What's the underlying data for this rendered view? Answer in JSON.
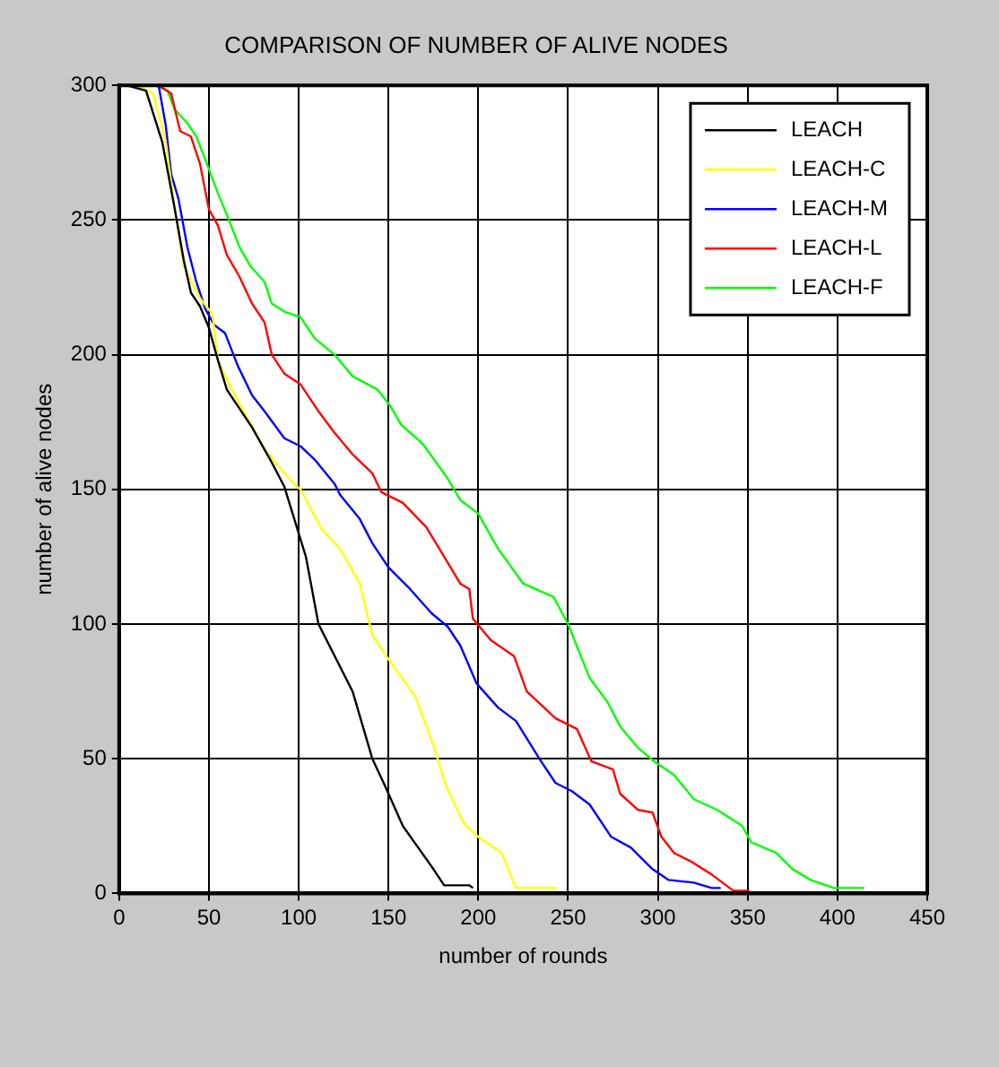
{
  "chart_data": {
    "type": "line",
    "title": "COMPARISON OF NUMBER OF ALIVE NODES",
    "xlabel": "number of rounds",
    "ylabel": "number of alive nodes",
    "xlim": [
      0,
      450
    ],
    "ylim": [
      0,
      300
    ],
    "xticks": [
      0,
      50,
      100,
      150,
      200,
      250,
      300,
      350,
      400,
      450
    ],
    "yticks": [
      0,
      50,
      100,
      150,
      200,
      250,
      300
    ],
    "grid": true,
    "legend": "top right",
    "marker": "none",
    "line_style": "solid",
    "series": [
      {
        "name": "LEACH",
        "color": "#000000",
        "x": [
          0,
          4,
          15,
          24,
          31,
          36,
          40,
          45,
          50,
          55,
          60,
          66,
          74,
          85,
          92,
          104,
          111,
          130,
          141,
          148,
          158,
          174,
          181,
          195,
          197
        ],
        "values": [
          300,
          300,
          298,
          279,
          254,
          235,
          223,
          218,
          210,
          198,
          187,
          181,
          173,
          160,
          151,
          125,
          100,
          75,
          50,
          40,
          25,
          10,
          3,
          3,
          2
        ]
      },
      {
        "name": "LEACH-C",
        "color": "#ffff00",
        "x": [
          0,
          10,
          19,
          26,
          31,
          36,
          45,
          52,
          55,
          62,
          71,
          81,
          92,
          99,
          101,
          113,
          123,
          134,
          141,
          151,
          165,
          175,
          182,
          192,
          200,
          213,
          221,
          244
        ],
        "values": [
          300,
          300,
          297,
          279,
          254,
          233,
          221,
          215,
          198,
          188,
          177,
          165,
          156,
          151,
          150,
          135,
          128,
          115,
          96,
          86,
          73,
          55,
          40,
          26,
          21,
          15,
          2,
          2
        ]
      },
      {
        "name": "LEACH-M",
        "color": "#0000ff",
        "x": [
          22,
          26,
          29,
          33,
          38,
          43,
          48,
          53,
          59,
          66,
          74,
          81,
          92,
          101,
          109,
          120,
          123,
          134,
          141,
          150,
          162,
          174,
          183,
          190,
          199,
          211,
          221,
          234,
          243,
          252,
          262,
          274,
          285,
          297,
          306,
          320,
          330,
          335
        ],
        "values": [
          300,
          285,
          267,
          258,
          240,
          227,
          217,
          211,
          208,
          196,
          185,
          179,
          169,
          166,
          161,
          152,
          148,
          139,
          130,
          121,
          113,
          104,
          99,
          92,
          78,
          69,
          64,
          50,
          41,
          38,
          33,
          21,
          17,
          9,
          5,
          4,
          2,
          2
        ]
      },
      {
        "name": "LEACH-L",
        "color": "#ff0000",
        "x": [
          22,
          29,
          34,
          40,
          45,
          50,
          55,
          60,
          67,
          74,
          81,
          85,
          92,
          101,
          111,
          120,
          130,
          141,
          146,
          158,
          171,
          181,
          190,
          195,
          197,
          207,
          220,
          227,
          235,
          243,
          255,
          263,
          275,
          279,
          289,
          297,
          302,
          309,
          318,
          330,
          342,
          351
        ],
        "values": [
          300,
          297,
          283,
          281,
          271,
          254,
          248,
          237,
          229,
          219,
          212,
          200,
          193,
          189,
          179,
          171,
          163,
          156,
          149,
          145,
          136,
          125,
          115,
          113,
          102,
          94,
          88,
          75,
          70,
          65,
          61,
          49,
          46,
          37,
          31,
          30,
          21,
          15,
          12,
          7,
          1,
          1
        ]
      },
      {
        "name": "LEACH-F",
        "color": "#00ff00",
        "x": [
          20,
          27,
          31,
          38,
          43,
          50,
          55,
          60,
          67,
          73,
          81,
          85,
          92,
          101,
          109,
          120,
          130,
          144,
          151,
          157,
          169,
          183,
          190,
          200,
          211,
          225,
          242,
          250,
          262,
          272,
          279,
          289,
          298,
          309,
          320,
          333,
          347,
          352,
          366,
          375,
          385,
          398,
          415
        ],
        "values": [
          300,
          298,
          291,
          286,
          281,
          269,
          260,
          252,
          240,
          233,
          227,
          219,
          216,
          214,
          206,
          200,
          192,
          187,
          181,
          174,
          167,
          154,
          146,
          141,
          128,
          115,
          110,
          100,
          80,
          71,
          62,
          54,
          49,
          44,
          35,
          31,
          25,
          19,
          15,
          9,
          5,
          2,
          2
        ]
      }
    ]
  }
}
